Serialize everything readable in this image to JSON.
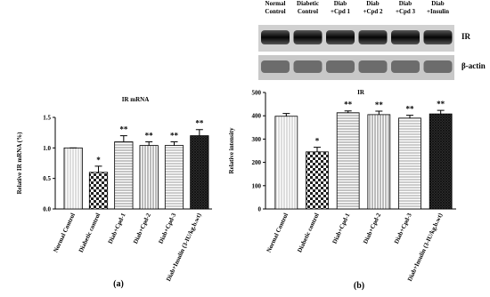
{
  "blot": {
    "columns": [
      [
        "Normal",
        "Control"
      ],
      [
        "Diabetic",
        "Control"
      ],
      [
        "Diab",
        "+Cpd 1"
      ],
      [
        "Diab",
        "+Cpd 2"
      ],
      [
        "Diab",
        "+Cpd 3"
      ],
      [
        "Diab",
        "+Insulin"
      ]
    ],
    "rows": [
      "IR",
      "β-actin"
    ]
  },
  "panels": [
    "(a)",
    "(b)"
  ],
  "chart_data": [
    {
      "type": "bar",
      "title": "IR mRNA",
      "y_label": "Relative IR mRNA (%)",
      "categories": [
        "Normal Control",
        "Diabetic control",
        "Diab+Cpd-1",
        "Diab+Cpd-2",
        "Diab+Cpd-3",
        "Diab+Insulin (3-IU/kg.b.wt)"
      ],
      "values": [
        1.0,
        0.6,
        1.1,
        1.04,
        1.04,
        1.2
      ],
      "errors": [
        0,
        0.1,
        0.1,
        0.06,
        0.06,
        0.1
      ],
      "significance": [
        null,
        "*",
        "**",
        "**",
        "**",
        "**"
      ],
      "ylim": [
        0,
        1.5
      ],
      "yticks": [
        {
          "value": 0,
          "label": "0.0"
        },
        0.5,
        {
          "value": 1,
          "label": "1.0"
        },
        1.5
      ]
    },
    {
      "type": "bar",
      "title": "IR",
      "y_label": "Relative intensity",
      "categories": [
        "Normal Control",
        "Diabetic control",
        "Diab+Cpd-1",
        "Diab+Cpd-2",
        "Diab+Cpd-3",
        "Diab+Insulin (3-IU/kg.b.wt)"
      ],
      "values": [
        398,
        245,
        413,
        405,
        390,
        408
      ],
      "errors": [
        12,
        20,
        8,
        15,
        12,
        15
      ],
      "significance": [
        null,
        "*",
        "**",
        "**",
        "**",
        "**"
      ],
      "ylim": [
        0,
        500
      ],
      "yticks": [
        0,
        100,
        200,
        300,
        400,
        500
      ]
    }
  ]
}
